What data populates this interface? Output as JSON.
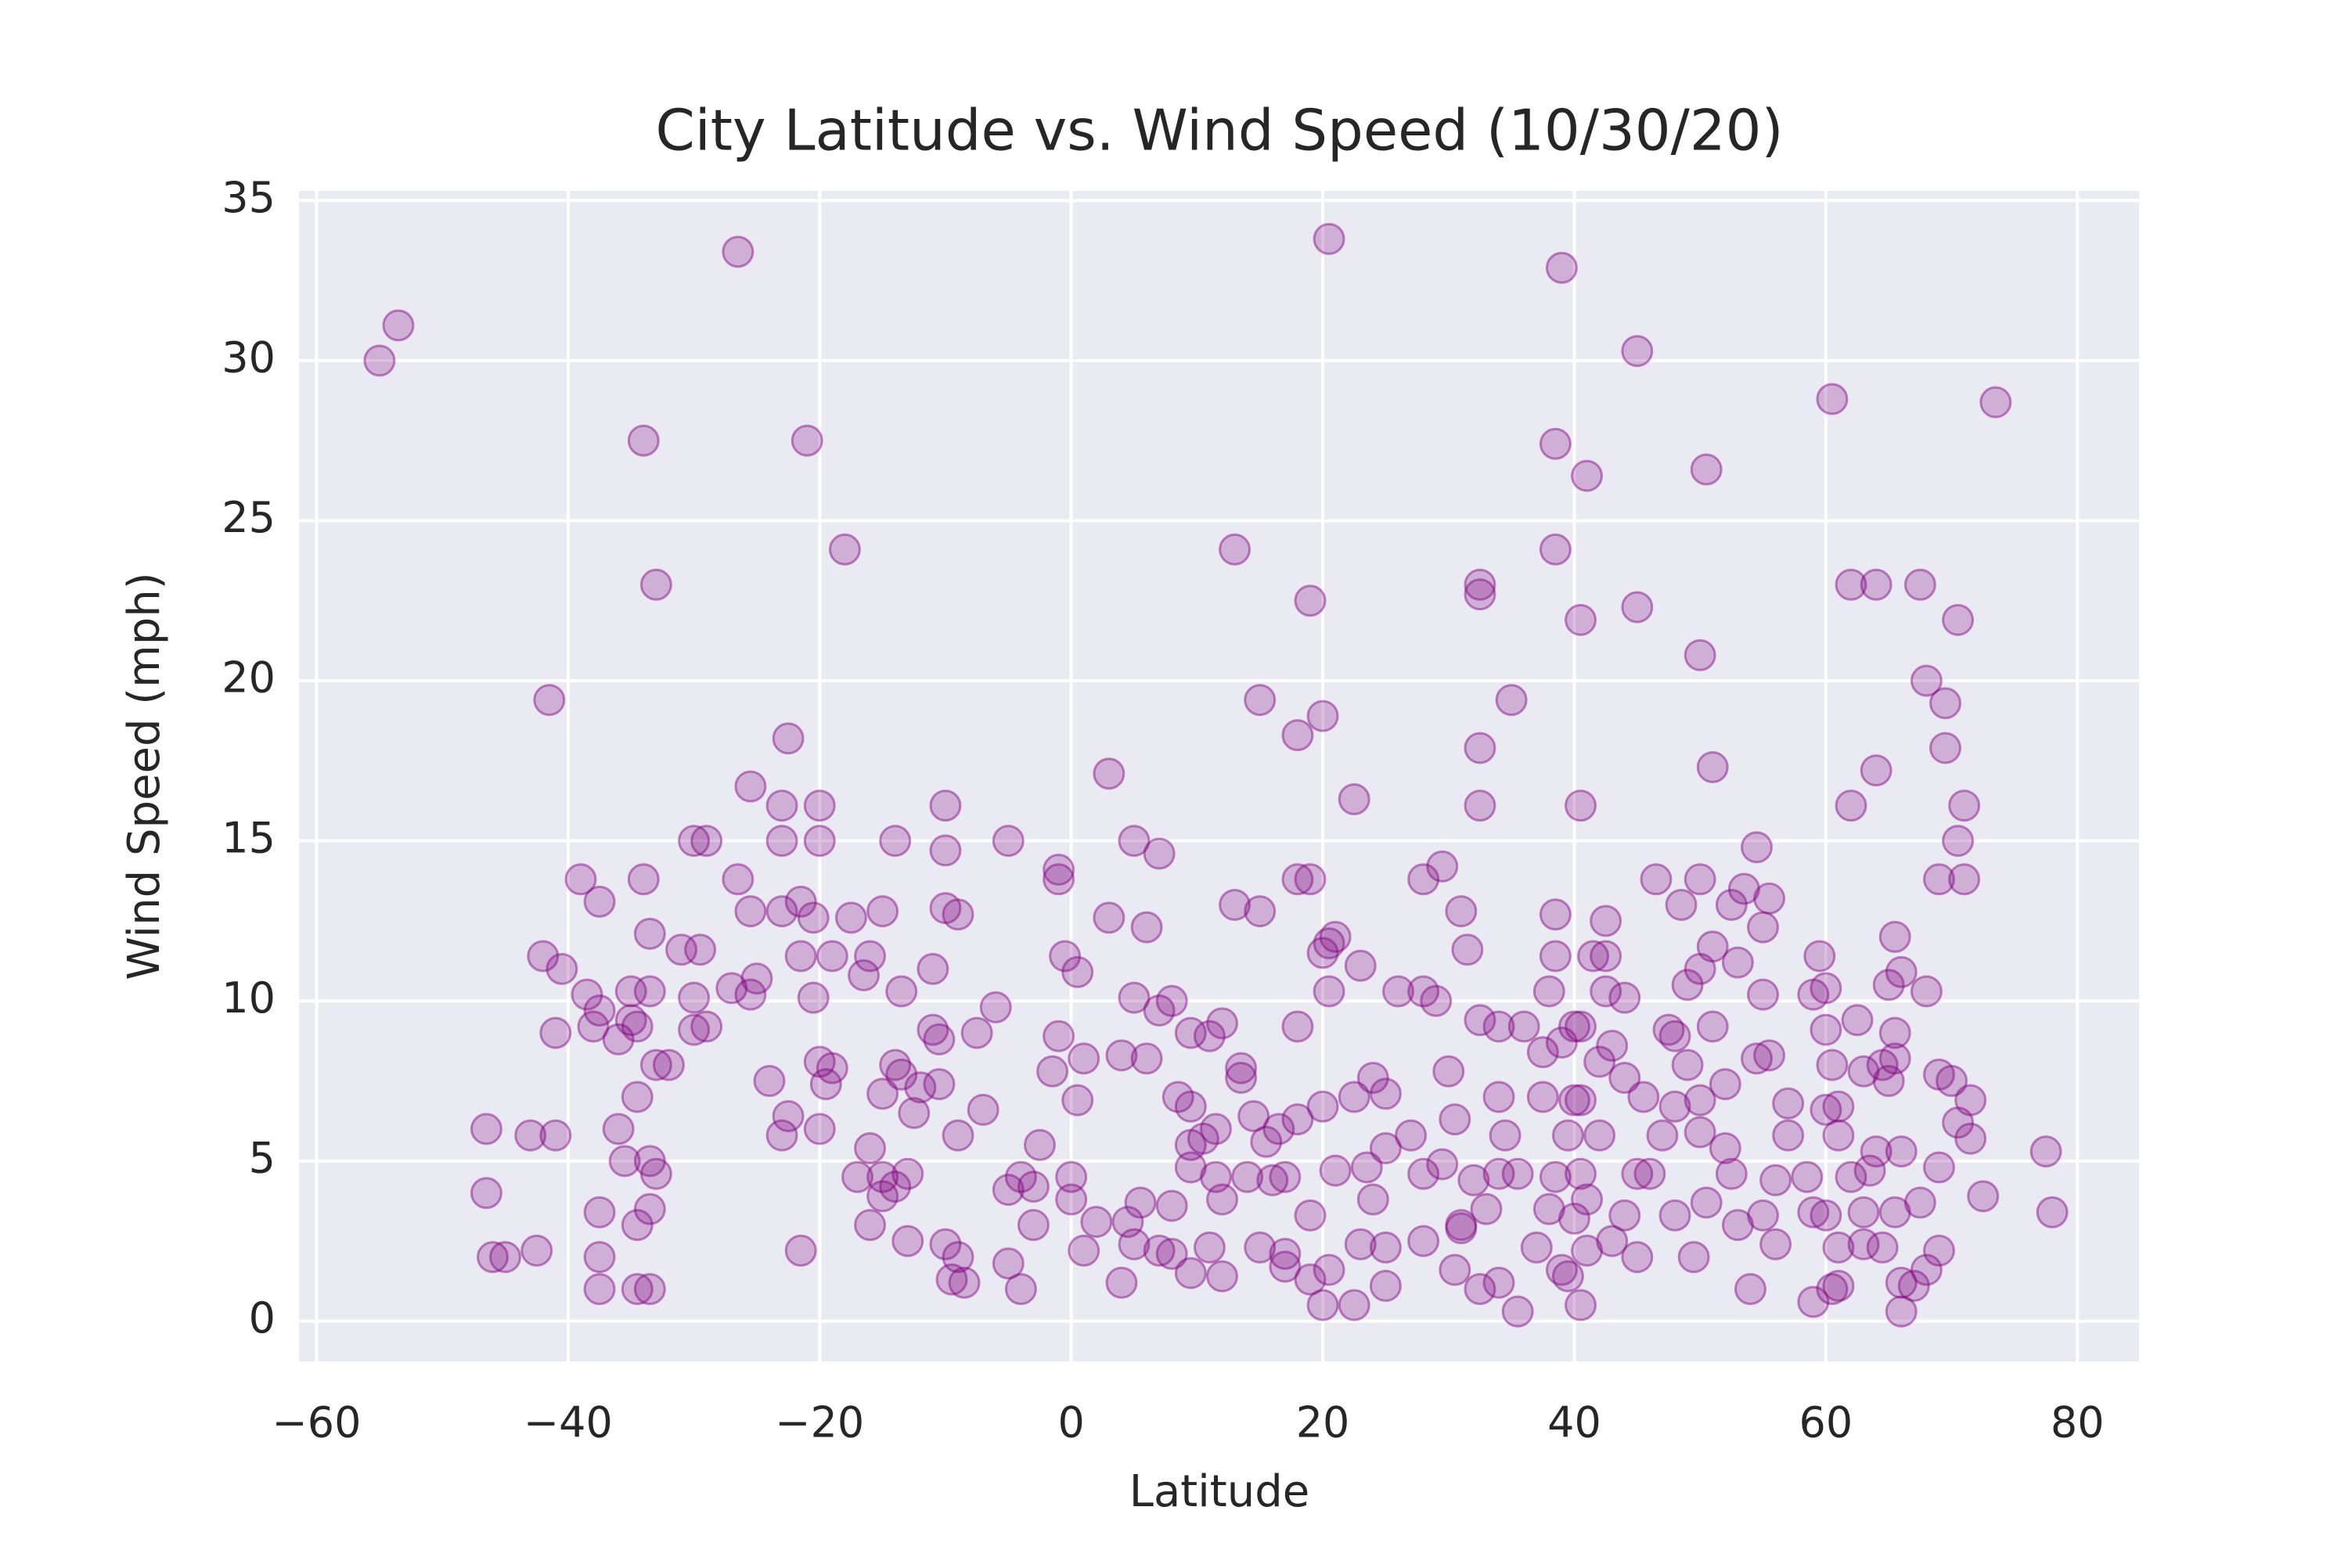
{
  "chart_data": {
    "type": "scatter",
    "title": "City Latitude vs. Wind Speed (10/30/20)",
    "x_label": "Latitude",
    "y_label": "Wind Speed (mph)",
    "color": "purple",
    "grid": true,
    "xlim": [
      -61.4,
      84.9
    ],
    "ylim": [
      -1.26,
      35.3
    ],
    "xticks": [
      {
        "value": -60,
        "label": "−60"
      },
      {
        "value": -40,
        "label": "−40"
      },
      {
        "value": -20,
        "label": "−20"
      },
      0,
      20,
      40,
      60,
      80
    ],
    "yticks": [
      0,
      5,
      10,
      15,
      20,
      25,
      30,
      35
    ],
    "x": [
      -55,
      -53.5,
      -26.5,
      20.5,
      39,
      -34,
      -21,
      45,
      60.5,
      73.5,
      38.5,
      41,
      50.5,
      -33,
      -18,
      13,
      38.5,
      32.5,
      32.5,
      19,
      45,
      62,
      64,
      67.5,
      40.5,
      70.5,
      50,
      -41.5,
      15,
      35,
      68,
      69.5,
      20,
      18,
      -22.5,
      32.5,
      69.5,
      51,
      64,
      3,
      -25.5,
      22.5,
      -20,
      -23,
      -10,
      32.5,
      40.5,
      62,
      71,
      -20,
      -23,
      -30,
      -29,
      -14,
      -5,
      5,
      -10,
      7,
      54.5,
      70.5,
      -39,
      -34,
      -26.5,
      -1,
      -1,
      18,
      19,
      28,
      29.5,
      46.5,
      50,
      53.5,
      69,
      71,
      -37.5,
      -21.5,
      -20.5,
      -10,
      -9,
      -15,
      -17.5,
      -23,
      -25.5,
      3,
      6,
      13,
      15,
      21,
      31,
      38.5,
      42.5,
      48.5,
      52.5,
      55.5,
      55,
      65.5,
      -33.5,
      -42,
      -40.5,
      -31,
      -29.5,
      -21.5,
      -19,
      -16,
      -11,
      -16.5,
      -13.5,
      -0.5,
      0.5,
      20,
      20.5,
      23,
      20.5,
      31.5,
      38.5,
      41.5,
      42.5,
      50,
      51,
      53,
      59.5,
      66,
      68,
      -38.5,
      -35,
      -33.5,
      -30,
      -25,
      -25.5,
      -20.5,
      -27,
      5,
      7,
      8,
      26,
      28,
      29,
      38,
      42.5,
      44,
      49,
      55,
      59,
      60,
      65,
      -41,
      -38,
      -37.5,
      -36,
      -35,
      -34.5,
      -30,
      -29,
      -11,
      -10.5,
      -7.5,
      -6,
      -1,
      9.5,
      11,
      12,
      18,
      32.5,
      34,
      36,
      40,
      40.5,
      47.5,
      48,
      51,
      60,
      62.5,
      65.5,
      -33,
      -32,
      -20,
      -19,
      -14,
      -13.5,
      1,
      4,
      6,
      13.5,
      13.5,
      30,
      37.5,
      39,
      42,
      43,
      49,
      54.5,
      55.5,
      60.5,
      63,
      64.5,
      65.5,
      69,
      -34.5,
      -24,
      -19.5,
      -15,
      -12,
      -10.5,
      -7,
      -1.5,
      0.5,
      8.5,
      9.5,
      14.5,
      16.5,
      18,
      20,
      22.5,
      24,
      25,
      30.5,
      34,
      37.5,
      40,
      40.5,
      44,
      45.5,
      48,
      50,
      52,
      57,
      60,
      61,
      65,
      70,
      71.5,
      -46.5,
      -43,
      -41,
      -36,
      -23,
      -22.5,
      -20,
      -16,
      -12.5,
      -9,
      -2.5,
      9.5,
      10.5,
      11.5,
      15.5,
      25,
      27,
      34.5,
      39.5,
      42,
      47,
      50,
      52,
      57,
      61,
      64,
      66,
      70.5,
      71.5,
      77.5,
      -35.5,
      -33.5,
      -33,
      -17,
      -15,
      -13,
      -4,
      -3,
      0,
      9.5,
      11.5,
      14,
      16,
      21,
      23.5,
      28,
      29.5,
      32,
      34,
      35.5,
      38.5,
      40.5,
      45,
      46,
      52.5,
      56,
      58.5,
      62,
      63.5,
      69,
      -46.5,
      -33.5,
      -34.5,
      -37.5,
      -15,
      -14,
      -16,
      -5,
      -3,
      0,
      2,
      4.5,
      5.5,
      8,
      12,
      17,
      19,
      24,
      31,
      33,
      38,
      40,
      41,
      44,
      48,
      50.5,
      53,
      55,
      59,
      60,
      63,
      65.5,
      67.5,
      72.5,
      78,
      -46,
      -45,
      -42.5,
      -37.5,
      -21.5,
      -13,
      -10,
      -9,
      1,
      5,
      7,
      8,
      11,
      15,
      17,
      23,
      25,
      28,
      31,
      37,
      41,
      43,
      45,
      49.5,
      56,
      61,
      63,
      64.5,
      69,
      -37.5,
      -34.5,
      -33.5,
      -9.5,
      -8.5,
      -4,
      -5,
      4,
      9.5,
      12,
      17,
      19,
      20,
      20.5,
      22.5,
      25,
      30.5,
      32.5,
      34,
      35.5,
      39,
      39.5,
      40.5,
      54,
      59,
      60.5,
      61,
      66,
      66,
      67,
      68
    ],
    "values": [
      30,
      31.1,
      33.4,
      33.8,
      32.9,
      27.5,
      27.5,
      30.3,
      28.8,
      28.7,
      27.4,
      26.4,
      26.6,
      23,
      24.1,
      24.1,
      24.1,
      23,
      22.7,
      22.5,
      22.3,
      23,
      23,
      23,
      21.9,
      21.9,
      20.8,
      19.4,
      19.4,
      19.4,
      20,
      19.3,
      18.9,
      18.3,
      18.2,
      17.9,
      17.9,
      17.3,
      17.2,
      17.1,
      16.7,
      16.3,
      16.1,
      16.1,
      16.1,
      16.1,
      16.1,
      16.1,
      16.1,
      15,
      15,
      15,
      15,
      15,
      15,
      15,
      14.7,
      14.6,
      14.8,
      15,
      13.8,
      13.8,
      13.8,
      14.1,
      13.8,
      13.8,
      13.8,
      13.8,
      14.2,
      13.8,
      13.8,
      13.5,
      13.8,
      13.8,
      13.1,
      13.1,
      12.6,
      12.9,
      12.7,
      12.8,
      12.6,
      12.8,
      12.8,
      12.6,
      12.3,
      13,
      12.8,
      12,
      12.8,
      12.7,
      12.5,
      13,
      13,
      13.2,
      12.3,
      12,
      12.1,
      11.4,
      11,
      11.6,
      11.6,
      11.4,
      11.4,
      11.4,
      11,
      10.8,
      10.3,
      11.4,
      10.9,
      11.5,
      11.8,
      11.1,
      10.3,
      11.6,
      11.4,
      11.4,
      11.4,
      11,
      11.7,
      11.2,
      11.4,
      10.9,
      10.3,
      10.2,
      10.3,
      10.3,
      10.1,
      10.7,
      10.2,
      10.1,
      10.4,
      10.1,
      9.7,
      10,
      10.3,
      10.3,
      10,
      10.3,
      10.3,
      10.1,
      10.5,
      10.2,
      10.2,
      10.4,
      10.5,
      9,
      9.2,
      9.7,
      8.8,
      9.4,
      9.2,
      9.1,
      9.2,
      9.1,
      8.8,
      9,
      9.8,
      8.9,
      9,
      8.9,
      9.3,
      9.2,
      9.4,
      9.2,
      9.2,
      9.2,
      9.2,
      9.1,
      8.9,
      9.2,
      9.1,
      9.4,
      9,
      8,
      8,
      8.1,
      7.9,
      8,
      7.7,
      8.2,
      8.3,
      8.2,
      7.9,
      7.6,
      7.8,
      8.4,
      8.7,
      8.1,
      8.6,
      8,
      8.2,
      8.3,
      8,
      7.8,
      8,
      8.2,
      7.7,
      7,
      7.5,
      7.4,
      7.1,
      7.3,
      7.4,
      6.6,
      7.8,
      6.9,
      7,
      6.7,
      6.4,
      6,
      6.3,
      6.7,
      7,
      7.6,
      7.1,
      6.3,
      7,
      7,
      6.9,
      6.9,
      7.6,
      7,
      6.7,
      6.9,
      7.4,
      6.8,
      6.6,
      6.7,
      7.5,
      7.5,
      6.9,
      6,
      5.8,
      5.8,
      6,
      5.8,
      6.4,
      6,
      5.4,
      6.5,
      5.8,
      5.5,
      5.5,
      5.7,
      6,
      5.6,
      5.4,
      5.8,
      5.8,
      5.8,
      5.8,
      5.8,
      5.9,
      5.4,
      5.8,
      5.8,
      5.3,
      5.3,
      6.2,
      5.7,
      5.3,
      5,
      5,
      4.6,
      4.5,
      4.5,
      4.6,
      4.5,
      4.2,
      4.5,
      4.8,
      4.5,
      4.5,
      4.4,
      4.7,
      4.8,
      4.6,
      4.9,
      4.4,
      4.6,
      4.6,
      4.5,
      4.6,
      4.6,
      4.6,
      4.6,
      4.4,
      4.5,
      4.5,
      4.7,
      4.8,
      4,
      3.5,
      3,
      3.4,
      3.9,
      4.2,
      3,
      4.1,
      3,
      3.8,
      3.1,
      3.1,
      3.7,
      3.6,
      3.8,
      4.5,
      3.3,
      3.8,
      3,
      3.5,
      3.5,
      3.2,
      3.8,
      3.3,
      3.3,
      3.7,
      3,
      3.3,
      3.4,
      3.3,
      3.4,
      3.4,
      3.7,
      3.9,
      3.4,
      2,
      2,
      2.2,
      2,
      2.2,
      2.5,
      2.4,
      2,
      2.2,
      2.4,
      2.2,
      2.1,
      2.3,
      2.3,
      2.1,
      2.4,
      2.3,
      2.5,
      2.9,
      2.3,
      2.2,
      2.5,
      2,
      2,
      2.4,
      2.3,
      2.4,
      2.3,
      2.2,
      1,
      1,
      1,
      1.3,
      1.2,
      1,
      1.8,
      1.2,
      1.5,
      1.4,
      1.7,
      1.3,
      0.5,
      1.6,
      0.5,
      1.1,
      1.6,
      1,
      1.2,
      0.3,
      1.6,
      1.4,
      0.5,
      1,
      0.6,
      1,
      1.1,
      0.3,
      1.2,
      1.1,
      1.6
    ]
  }
}
